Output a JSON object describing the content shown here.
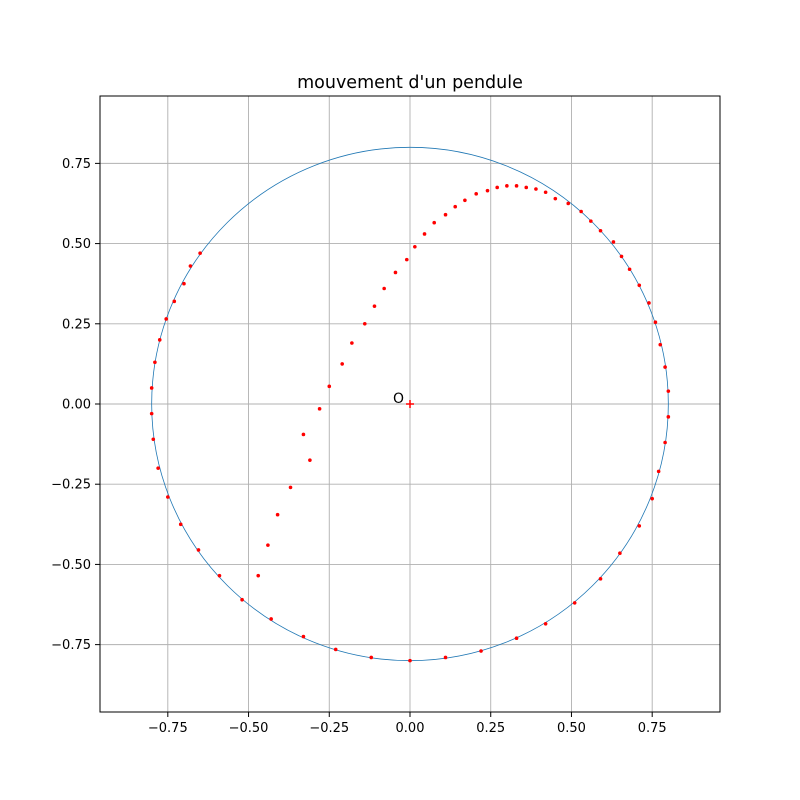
{
  "chart_data": {
    "type": "scatter",
    "title": "mouvement d'un pendule",
    "xlabel": "",
    "ylabel": "",
    "xlim": [
      -0.96,
      0.96
    ],
    "ylim": [
      -0.96,
      0.96
    ],
    "grid": true,
    "x_ticks": [
      -0.75,
      -0.5,
      -0.25,
      0.0,
      0.25,
      0.5,
      0.75
    ],
    "x_tick_labels": [
      "−0.75",
      "−0.50",
      "−0.25",
      "0.00",
      "0.25",
      "0.50",
      "0.75"
    ],
    "y_ticks": [
      -0.75,
      -0.5,
      -0.25,
      0.0,
      0.25,
      0.5,
      0.75
    ],
    "y_tick_labels": [
      "−0.75",
      "−0.50",
      "−0.25",
      "0.00",
      "0.25",
      "0.50",
      "0.75"
    ],
    "circle": {
      "center": [
        0,
        0
      ],
      "radius": 0.8,
      "color": "#1f77b4"
    },
    "origin": {
      "x": 0,
      "y": 0,
      "label": "O",
      "color": "#ff0000"
    },
    "points_color": "#ff0000",
    "points": [
      [
        -0.47,
        -0.535
      ],
      [
        -0.44,
        -0.44
      ],
      [
        -0.41,
        -0.345
      ],
      [
        -0.37,
        -0.26
      ],
      [
        -0.33,
        -0.095
      ],
      [
        -0.31,
        -0.175
      ],
      [
        -0.28,
        -0.015
      ],
      [
        -0.25,
        0.055
      ],
      [
        -0.21,
        0.125
      ],
      [
        -0.18,
        0.19
      ],
      [
        -0.14,
        0.25
      ],
      [
        -0.11,
        0.305
      ],
      [
        -0.08,
        0.36
      ],
      [
        -0.045,
        0.41
      ],
      [
        -0.01,
        0.45
      ],
      [
        0.015,
        0.49
      ],
      [
        0.045,
        0.53
      ],
      [
        0.075,
        0.565
      ],
      [
        0.11,
        0.59
      ],
      [
        0.14,
        0.615
      ],
      [
        0.17,
        0.635
      ],
      [
        0.205,
        0.655
      ],
      [
        0.24,
        0.665
      ],
      [
        0.27,
        0.675
      ],
      [
        0.3,
        0.68
      ],
      [
        0.33,
        0.68
      ],
      [
        0.36,
        0.675
      ],
      [
        0.39,
        0.67
      ],
      [
        0.42,
        0.66
      ],
      [
        0.45,
        0.64
      ],
      [
        0.49,
        0.625
      ],
      [
        0.53,
        0.6
      ],
      [
        0.56,
        0.57
      ],
      [
        0.59,
        0.54
      ],
      [
        0.63,
        0.505
      ],
      [
        0.655,
        0.46
      ],
      [
        0.68,
        0.42
      ],
      [
        0.71,
        0.37
      ],
      [
        0.74,
        0.315
      ],
      [
        0.76,
        0.255
      ],
      [
        0.775,
        0.185
      ],
      [
        0.79,
        0.115
      ],
      [
        0.8,
        0.04
      ],
      [
        0.8,
        -0.04
      ],
      [
        0.79,
        -0.12
      ],
      [
        0.77,
        -0.21
      ],
      [
        0.75,
        -0.295
      ],
      [
        0.71,
        -0.38
      ],
      [
        0.65,
        -0.465
      ],
      [
        0.59,
        -0.545
      ],
      [
        0.51,
        -0.62
      ],
      [
        0.42,
        -0.685
      ],
      [
        0.33,
        -0.73
      ],
      [
        0.22,
        -0.77
      ],
      [
        0.11,
        -0.79
      ],
      [
        0.0,
        -0.8
      ],
      [
        -0.12,
        -0.79
      ],
      [
        -0.23,
        -0.765
      ],
      [
        -0.33,
        -0.725
      ],
      [
        -0.43,
        -0.67
      ],
      [
        -0.52,
        -0.61
      ],
      [
        -0.59,
        -0.535
      ],
      [
        -0.655,
        -0.455
      ],
      [
        -0.71,
        -0.375
      ],
      [
        -0.75,
        -0.29
      ],
      [
        -0.78,
        -0.2
      ],
      [
        -0.795,
        -0.11
      ],
      [
        -0.8,
        -0.03
      ],
      [
        -0.8,
        0.05
      ],
      [
        -0.79,
        0.13
      ],
      [
        -0.775,
        0.2
      ],
      [
        -0.755,
        0.265
      ],
      [
        -0.73,
        0.32
      ],
      [
        -0.7,
        0.375
      ],
      [
        -0.68,
        0.43
      ],
      [
        -0.65,
        0.47
      ]
    ]
  }
}
